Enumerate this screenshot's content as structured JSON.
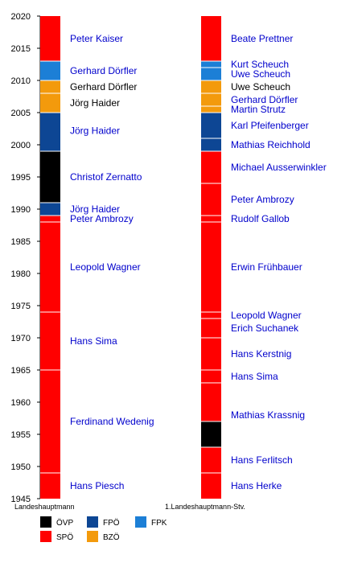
{
  "chart_data": {
    "type": "timeline",
    "ylim": [
      1945,
      2020
    ],
    "y_ticks": [
      1945,
      1950,
      1955,
      1960,
      1965,
      1970,
      1975,
      1980,
      1985,
      1990,
      1995,
      2000,
      2005,
      2010,
      2015,
      2020
    ],
    "columns": [
      {
        "label": "Landeshauptmann",
        "segments": [
          {
            "start": 1945,
            "end": 1949,
            "party": "SPÖ"
          },
          {
            "start": 1949,
            "end": 1965,
            "party": "SPÖ"
          },
          {
            "start": 1965,
            "end": 1974,
            "party": "SPÖ"
          },
          {
            "start": 1974,
            "end": 1988,
            "party": "SPÖ"
          },
          {
            "start": 1988,
            "end": 1989,
            "party": "SPÖ"
          },
          {
            "start": 1989,
            "end": 1991,
            "party": "FPÖ"
          },
          {
            "start": 1991,
            "end": 1999,
            "party": "ÖVP"
          },
          {
            "start": 1999,
            "end": 2005,
            "party": "FPÖ"
          },
          {
            "start": 2005,
            "end": 2008,
            "party": "BZÖ"
          },
          {
            "start": 2008,
            "end": 2010,
            "party": "BZÖ"
          },
          {
            "start": 2010,
            "end": 2013,
            "party": "FPK"
          },
          {
            "start": 2013,
            "end": 2020,
            "party": "SPÖ"
          }
        ],
        "names": [
          {
            "name": "Hans Piesch",
            "year": 1947.0,
            "linked": true
          },
          {
            "name": "Ferdinand Wedenig",
            "year": 1957.0,
            "linked": true
          },
          {
            "name": "Hans Sima",
            "year": 1969.5,
            "linked": true
          },
          {
            "name": "Leopold Wagner",
            "year": 1981.0,
            "linked": true
          },
          {
            "name": "Peter Ambrozy",
            "year": 1988.5,
            "linked": true
          },
          {
            "name": "Jörg Haider",
            "year": 1990.0,
            "linked": true
          },
          {
            "name": "Christof Zernatto",
            "year": 1995.0,
            "linked": true
          },
          {
            "name": "Jörg Haider",
            "year": 2002.2,
            "linked": true
          },
          {
            "name": "Jörg Haider",
            "year": 2006.5,
            "linked": false
          },
          {
            "name": "Gerhard Dörfler",
            "year": 2009.0,
            "linked": false
          },
          {
            "name": "Gerhard Dörfler",
            "year": 2011.5,
            "linked": true
          },
          {
            "name": "Peter Kaiser",
            "year": 2016.5,
            "linked": true
          }
        ]
      },
      {
        "label": "1.Landeshauptmann-Stv.",
        "segments": [
          {
            "start": 1945,
            "end": 1949,
            "party": "SPÖ"
          },
          {
            "start": 1949,
            "end": 1953,
            "party": "SPÖ"
          },
          {
            "start": 1953,
            "end": 1957,
            "party": "ÖVP"
          },
          {
            "start": 1957,
            "end": 1963,
            "party": "SPÖ"
          },
          {
            "start": 1963,
            "end": 1965,
            "party": "SPÖ"
          },
          {
            "start": 1965,
            "end": 1970,
            "party": "SPÖ"
          },
          {
            "start": 1970,
            "end": 1973,
            "party": "SPÖ"
          },
          {
            "start": 1973,
            "end": 1974,
            "party": "SPÖ"
          },
          {
            "start": 1974,
            "end": 1988,
            "party": "SPÖ"
          },
          {
            "start": 1988,
            "end": 1989,
            "party": "SPÖ"
          },
          {
            "start": 1989,
            "end": 1994,
            "party": "SPÖ"
          },
          {
            "start": 1994,
            "end": 1999,
            "party": "SPÖ"
          },
          {
            "start": 1999,
            "end": 2001,
            "party": "FPÖ"
          },
          {
            "start": 2001,
            "end": 2005,
            "party": "FPÖ"
          },
          {
            "start": 2005,
            "end": 2006,
            "party": "BZÖ"
          },
          {
            "start": 2006,
            "end": 2008,
            "party": "BZÖ"
          },
          {
            "start": 2008,
            "end": 2010,
            "party": "BZÖ"
          },
          {
            "start": 2010,
            "end": 2012,
            "party": "FPK"
          },
          {
            "start": 2012,
            "end": 2013,
            "party": "FPK"
          },
          {
            "start": 2013,
            "end": 2020,
            "party": "SPÖ"
          }
        ],
        "names": [
          {
            "name": "Hans Herke",
            "year": 1947.0,
            "linked": true
          },
          {
            "name": "Hans Ferlitsch",
            "year": 1951.0,
            "linked": true
          },
          {
            "name": "Mathias Krassnig",
            "year": 1958.0,
            "linked": true
          },
          {
            "name": "Hans Sima",
            "year": 1964.0,
            "linked": true
          },
          {
            "name": "Hans Kerstnig",
            "year": 1967.5,
            "linked": true
          },
          {
            "name": "Erich Suchanek",
            "year": 1971.5,
            "linked": true
          },
          {
            "name": "Leopold Wagner",
            "year": 1973.5,
            "linked": true
          },
          {
            "name": "Erwin Frühbauer",
            "year": 1981.0,
            "linked": true
          },
          {
            "name": "Rudolf Gallob",
            "year": 1988.5,
            "linked": true
          },
          {
            "name": "Peter Ambrozy",
            "year": 1991.5,
            "linked": true
          },
          {
            "name": "Michael Ausserwinkler",
            "year": 1996.5,
            "linked": true
          },
          {
            "name": "Mathias Reichhold",
            "year": 2000.0,
            "linked": true
          },
          {
            "name": "Karl Pfeifenberger",
            "year": 2003.0,
            "linked": true
          },
          {
            "name": "Martin Strutz",
            "year": 2005.5,
            "linked": true
          },
          {
            "name": "Gerhard Dörfler",
            "year": 2007.0,
            "linked": true
          },
          {
            "name": "Uwe Scheuch",
            "year": 2009.0,
            "linked": false
          },
          {
            "name": "Uwe Scheuch",
            "year": 2011.0,
            "linked": true
          },
          {
            "name": "Kurt Scheuch",
            "year": 2012.5,
            "linked": true
          },
          {
            "name": "Beate Prettner",
            "year": 2016.5,
            "linked": true
          }
        ]
      }
    ],
    "legend": [
      {
        "party": "ÖVP",
        "color": "#000000"
      },
      {
        "party": "FPÖ",
        "color": "#0d4694"
      },
      {
        "party": "FPK",
        "color": "#1c7fd6"
      },
      {
        "party": "SPÖ",
        "color": "#ff0000"
      },
      {
        "party": "BZÖ",
        "color": "#f39a0c"
      }
    ],
    "colors": {
      "SPÖ": "#ff0000",
      "ÖVP": "#000000",
      "FPÖ": "#0d4694",
      "BZÖ": "#f39a0c",
      "FPK": "#1c7fd6",
      "linked_text": "#0000cc",
      "plain_text": "#000000"
    }
  }
}
